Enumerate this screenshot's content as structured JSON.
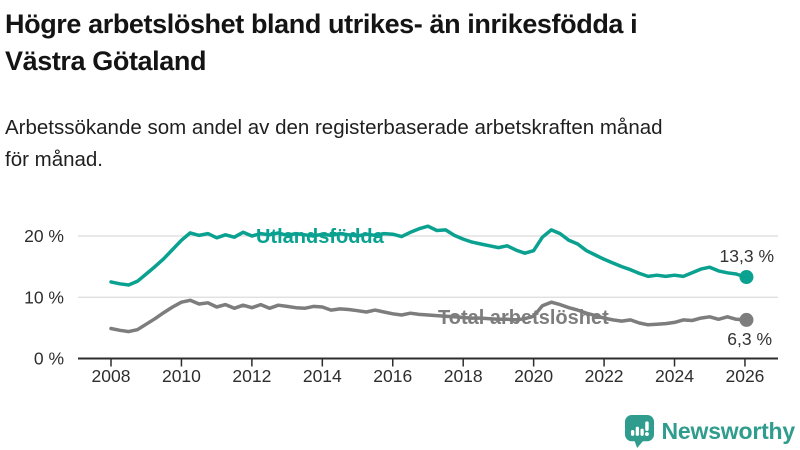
{
  "header": {
    "title_lines": [
      "Högre arbetslöshet bland utrikes- än inrikesfödda i",
      "Västra Götaland"
    ],
    "subtitle_lines": [
      "Arbetssökande som andel av den registerbaserade arbetskraften månad",
      "för månad."
    ]
  },
  "chart_data": {
    "type": "line",
    "title": "Högre arbetslöshet bland utrikes- än inrikesfödda i Västra Götaland",
    "subtitle": "Arbetssökande som andel av den registerbaserade arbetskraften månad för månad.",
    "xlabel": "",
    "ylabel": "",
    "grid": "horizontal",
    "legend_position": "inline-labels",
    "xlim": [
      2007.5,
      2026.9
    ],
    "ylim": [
      0,
      23
    ],
    "x_ticks": [
      2008,
      2010,
      2012,
      2014,
      2016,
      2018,
      2020,
      2022,
      2024,
      2026
    ],
    "y_ticks": [
      {
        "value": 0,
        "label": "0 %"
      },
      {
        "value": 10,
        "label": "10 %"
      },
      {
        "value": 20,
        "label": "20 %"
      }
    ],
    "x": [
      2008,
      2008.25,
      2008.5,
      2008.75,
      2009,
      2009.25,
      2009.5,
      2009.75,
      2010,
      2010.25,
      2010.5,
      2010.75,
      2011,
      2011.25,
      2011.5,
      2011.75,
      2012,
      2012.25,
      2012.5,
      2012.75,
      2013,
      2013.25,
      2013.5,
      2013.75,
      2014,
      2014.25,
      2014.5,
      2014.75,
      2015,
      2015.25,
      2015.5,
      2015.75,
      2016,
      2016.25,
      2016.5,
      2016.75,
      2017,
      2017.25,
      2017.5,
      2017.75,
      2018,
      2018.25,
      2018.5,
      2018.75,
      2019,
      2019.25,
      2019.5,
      2019.75,
      2020,
      2020.25,
      2020.5,
      2020.75,
      2021,
      2021.25,
      2021.5,
      2021.75,
      2022,
      2022.25,
      2022.5,
      2022.75,
      2023,
      2023.25,
      2023.5,
      2023.75,
      2024,
      2024.25,
      2024.5,
      2024.75,
      2025,
      2025.25,
      2025.5,
      2025.75,
      2026
    ],
    "series": [
      {
        "name": "Utlandsfödda",
        "color": "#0aa191",
        "end_label": "13,3 %",
        "end_value": 13.3,
        "values": [
          12.5,
          12.2,
          12.0,
          12.6,
          13.8,
          15.0,
          16.3,
          17.8,
          19.3,
          20.5,
          20.1,
          20.4,
          19.7,
          20.2,
          19.8,
          20.6,
          20.0,
          20.4,
          20.2,
          20.5,
          20.1,
          20.4,
          20.2,
          20.0,
          20.3,
          20.1,
          20.4,
          20.2,
          20.0,
          20.3,
          20.1,
          20.4,
          20.3,
          19.9,
          20.6,
          21.2,
          21.6,
          20.9,
          21.0,
          20.1,
          19.5,
          19.0,
          18.7,
          18.4,
          18.1,
          18.4,
          17.7,
          17.2,
          17.6,
          19.8,
          21.0,
          20.4,
          19.3,
          18.7,
          17.6,
          16.9,
          16.2,
          15.6,
          15.0,
          14.5,
          13.9,
          13.4,
          13.6,
          13.4,
          13.6,
          13.4,
          14.0,
          14.6,
          14.9,
          14.3,
          14.0,
          13.8,
          13.3
        ]
      },
      {
        "name": "Total arbetslöshet",
        "color": "#7d7d7d",
        "end_label": "6,3 %",
        "end_value": 6.3,
        "values": [
          4.9,
          4.6,
          4.4,
          4.7,
          5.6,
          6.5,
          7.5,
          8.4,
          9.2,
          9.5,
          8.9,
          9.1,
          8.4,
          8.8,
          8.2,
          8.7,
          8.3,
          8.8,
          8.2,
          8.7,
          8.5,
          8.3,
          8.2,
          8.5,
          8.4,
          7.9,
          8.1,
          8.0,
          7.8,
          7.6,
          7.9,
          7.6,
          7.3,
          7.1,
          7.4,
          7.2,
          7.1,
          7.0,
          6.9,
          6.8,
          6.7,
          6.6,
          6.6,
          6.5,
          6.4,
          6.4,
          6.3,
          6.5,
          6.9,
          8.6,
          9.2,
          8.8,
          8.3,
          7.9,
          7.4,
          7.0,
          6.6,
          6.3,
          6.1,
          6.3,
          5.8,
          5.5,
          5.6,
          5.7,
          5.9,
          6.3,
          6.2,
          6.6,
          6.8,
          6.4,
          6.8,
          6.4,
          6.3
        ]
      }
    ],
    "colors": {
      "axis": "#2d2d2d",
      "gridline": "#dcdcdc",
      "tick_text": "#2e2e2e",
      "value_label_text": "#333333"
    }
  },
  "footer": {
    "brand": "Newsworthy",
    "brand_color": "#2f9c8e",
    "logo_icon": "bar-chart-speech-bubble"
  }
}
